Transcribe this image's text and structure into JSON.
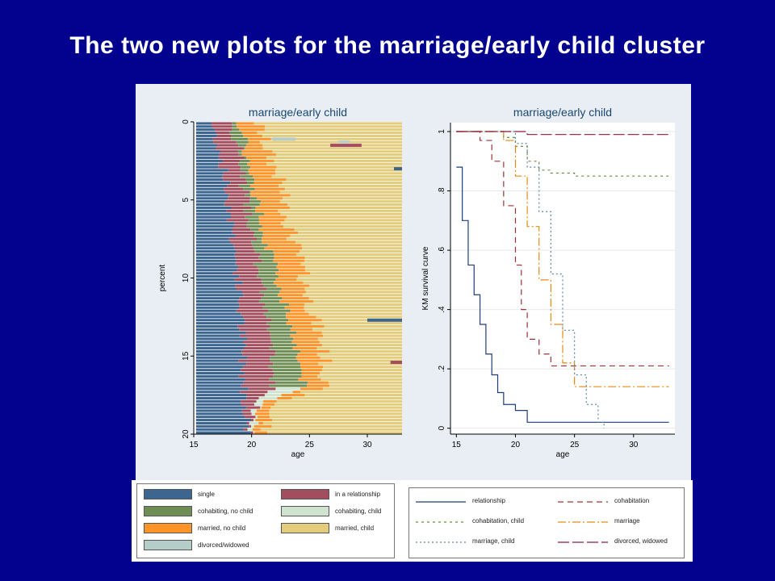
{
  "slide": {
    "title": "The two new plots for the marriage/early child cluster",
    "background": "#02028f"
  },
  "chart_data": [
    {
      "type": "sequence-index",
      "title": "marriage/early child",
      "xlabel": "age",
      "ylabel": "percent",
      "xticks": [
        15,
        20,
        25,
        30
      ],
      "yticks": [
        0,
        5,
        10,
        15,
        20
      ],
      "xlim": [
        15,
        33
      ],
      "ylim": [
        0,
        20
      ],
      "grid": false,
      "states": [
        {
          "name": "single",
          "color": "#3c6690"
        },
        {
          "name": "in a relationship",
          "color": "#a24e5e"
        },
        {
          "name": "cohabiting, no child",
          "color": "#6f8e55"
        },
        {
          "name": "cohabiting, child",
          "color": "#cfe4cf"
        },
        {
          "name": "married, no child",
          "color": "#fe9428"
        },
        {
          "name": "married, child",
          "color": "#e3cc7b"
        },
        {
          "name": "divorced/widowed",
          "color": "#b4cdc8"
        }
      ],
      "state_boundaries": {
        "percent": [
          0,
          2,
          4,
          6,
          8,
          10,
          12,
          14,
          16,
          17,
          18,
          19,
          20
        ],
        "single_end_age": [
          16.5,
          17.3,
          17.8,
          18.2,
          18.5,
          18.8,
          19,
          19.2,
          19.3,
          19.4,
          19.5,
          19.6,
          19.7
        ],
        "relationship_end_age": [
          18.2,
          19,
          19.3,
          19.8,
          20.2,
          20.8,
          21.2,
          21.6,
          21.8,
          22,
          20.5,
          20,
          19.5
        ],
        "cohabiting_end_age": [
          19,
          19.5,
          20,
          20.8,
          21.4,
          22.2,
          23,
          23.8,
          24.3,
          24.5,
          21,
          20.5,
          20
        ],
        "married_no_child_end_age": [
          20.5,
          21.5,
          22.5,
          23,
          23.8,
          24.5,
          25.2,
          26,
          26.5,
          26,
          22,
          21.5,
          21
        ],
        "last_age": [
          33,
          33,
          33,
          33,
          33,
          33,
          33,
          33,
          33,
          33,
          33,
          33,
          33
        ]
      }
    },
    {
      "type": "line",
      "title": "marriage/early child",
      "xlabel": "age",
      "ylabel": "KM survival curve",
      "xticks": [
        15,
        20,
        25,
        30
      ],
      "yticks": [
        0,
        0.2,
        0.4,
        0.6,
        0.8,
        1
      ],
      "ytick_labels": [
        "0",
        ".2",
        ".4",
        ".6",
        ".8",
        "1"
      ],
      "xlim": [
        14.5,
        33.5
      ],
      "ylim": [
        -0.02,
        1.03
      ],
      "grid": true,
      "legend_position": "below",
      "series": [
        {
          "name": "relationship",
          "color": "#1f3f74",
          "dash": "solid",
          "x": [
            15,
            15.5,
            16,
            16.5,
            17,
            17.5,
            18,
            18.5,
            19,
            20,
            21,
            33
          ],
          "y": [
            0.88,
            0.7,
            0.55,
            0.45,
            0.35,
            0.25,
            0.18,
            0.12,
            0.08,
            0.06,
            0.02,
            0.02
          ]
        },
        {
          "name": "cohabitation",
          "color": "#a03035",
          "dash": "7,5",
          "x": [
            15,
            17,
            18,
            19,
            20,
            20.5,
            21,
            22,
            23,
            33
          ],
          "y": [
            1,
            0.97,
            0.9,
            0.75,
            0.55,
            0.4,
            0.3,
            0.25,
            0.21,
            0.21
          ]
        },
        {
          "name": "cohabitation, child",
          "color": "#6b8a3c",
          "dash": "3,4",
          "x": [
            15,
            18,
            19,
            20,
            21,
            22,
            23,
            25,
            33
          ],
          "y": [
            1,
            1,
            0.98,
            0.95,
            0.9,
            0.87,
            0.86,
            0.85,
            0.85
          ]
        },
        {
          "name": "marriage",
          "color": "#e68b10",
          "dash": "10,3,2,3",
          "x": [
            15,
            18,
            19,
            20,
            21,
            22,
            23,
            24,
            25,
            26,
            33
          ],
          "y": [
            1,
            1,
            0.97,
            0.85,
            0.68,
            0.5,
            0.35,
            0.22,
            0.14,
            0.14,
            0.14
          ]
        },
        {
          "name": "marriage, child",
          "color": "#5a8aa0",
          "dash": "2,3",
          "x": [
            15,
            19,
            20,
            21,
            22,
            23,
            24,
            25,
            26,
            27,
            27.5
          ],
          "y": [
            1,
            1,
            0.96,
            0.88,
            0.73,
            0.52,
            0.33,
            0.18,
            0.08,
            0.02,
            0
          ]
        },
        {
          "name": "divorced, widowed",
          "color": "#8c1a3a",
          "dash": "14,4",
          "x": [
            15,
            18,
            19,
            20,
            21,
            33
          ],
          "y": [
            1,
            1,
            1,
            1,
            0.99,
            0.99
          ]
        }
      ]
    }
  ]
}
